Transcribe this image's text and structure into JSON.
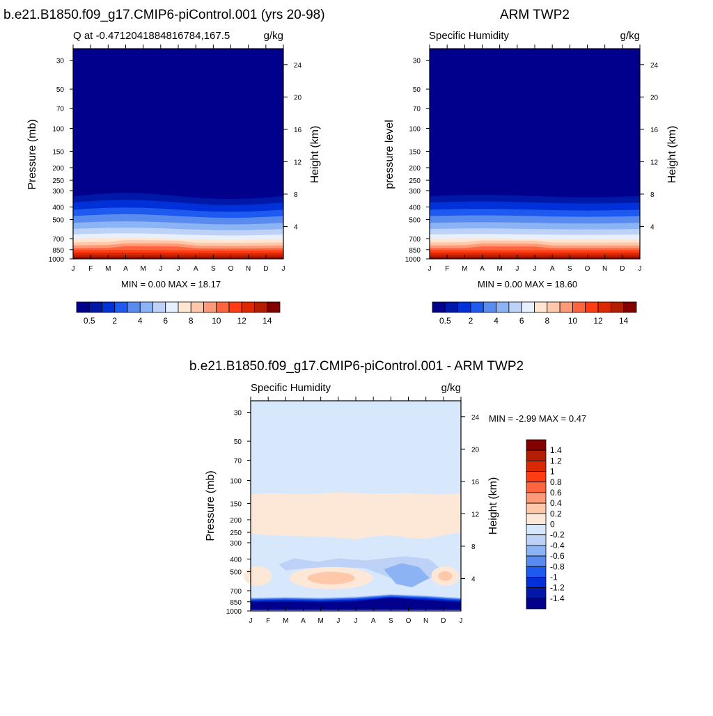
{
  "colors": {
    "ramp": [
      "#00008c",
      "#0018a8",
      "#0030d8",
      "#1e5af0",
      "#5a8cf0",
      "#8cb4f5",
      "#bed2f8",
      "#e6f0ff",
      "#ffe6d2",
      "#ffc8aa",
      "#ff9a78",
      "#ff6440",
      "#ff3c14",
      "#dc2800",
      "#b41e00",
      "#820000"
    ],
    "diff_ramp": [
      "#00008c",
      "#0018a8",
      "#0030d8",
      "#1e5af0",
      "#5a8cf0",
      "#8cb4f5",
      "#bed2f8",
      "#d8e8fc",
      "#fde8d8",
      "#ffc8aa",
      "#ff9a78",
      "#ff6440",
      "#ff3c14",
      "#dc2800",
      "#b41e00",
      "#820000"
    ]
  },
  "panels": {
    "model": {
      "title": "b.e21.B1850.f09_g17.CMIP6-piControl.001 (yrs 20-98)",
      "left_label": "Q at -0.4712041884816784,167.5",
      "right_label": "g/kg",
      "y_left_label": "Pressure (mb)",
      "y_right_label": "Height (km)",
      "minmax": "MIN =   0.00 MAX =  18.17"
    },
    "obs": {
      "title": "ARM TWP2",
      "left_label": "Specific Humidity",
      "right_label": "g/kg",
      "y_left_label": "pressure level",
      "y_right_label": "Height (km)",
      "minmax": "MIN =   0.00 MAX =  18.60"
    },
    "diff": {
      "title": "b.e21.B1850.f09_g17.CMIP6-piControl.001 - ARM TWP2",
      "left_label": "Specific Humidity",
      "right_label": "g/kg",
      "y_left_label": "Pressure (mb)",
      "y_right_label": "Height (km)",
      "minmax": "MIN =  -2.99 MAX =   0.47"
    }
  },
  "chart_data": [
    {
      "type": "heatmap",
      "title": "b.e21.B1850.f09_g17.CMIP6-piControl.001 (yrs 20-98)",
      "variable": "Q at -0.4712041884816784,167.5",
      "units": "g/kg",
      "x": [
        "J",
        "F",
        "M",
        "A",
        "M",
        "J",
        "J",
        "A",
        "S",
        "O",
        "N",
        "D",
        "J"
      ],
      "y_pressure_ticks": [
        30,
        50,
        70,
        100,
        150,
        200,
        250,
        300,
        400,
        500,
        700,
        850,
        1000
      ],
      "y_height_ticks": [
        24,
        20,
        16,
        12,
        8,
        4
      ],
      "xlabel": "",
      "ylabel": "Pressure (mb)",
      "ylabel_right": "Height (km)",
      "ylim": [
        1000,
        25
      ],
      "colorbar_ticks": [
        "0.5",
        "2",
        "4",
        "6",
        "8",
        "10",
        "12",
        "14"
      ],
      "min": 0.0,
      "max": 18.17
    },
    {
      "type": "heatmap",
      "title": "ARM TWP2",
      "variable": "Specific Humidity",
      "units": "g/kg",
      "x": [
        "J",
        "F",
        "M",
        "A",
        "M",
        "J",
        "J",
        "A",
        "S",
        "O",
        "N",
        "D",
        "J"
      ],
      "y_pressure_ticks": [
        30,
        50,
        70,
        100,
        150,
        200,
        250,
        300,
        400,
        500,
        700,
        850,
        1000
      ],
      "y_height_ticks": [
        24,
        20,
        16,
        12,
        8,
        4
      ],
      "xlabel": "",
      "ylabel": "pressure level",
      "ylabel_right": "Height (km)",
      "ylim": [
        1000,
        25
      ],
      "colorbar_ticks": [
        "0.5",
        "2",
        "4",
        "6",
        "8",
        "10",
        "12",
        "14"
      ],
      "min": 0.0,
      "max": 18.6
    },
    {
      "type": "heatmap",
      "title": "b.e21.B1850.f09_g17.CMIP6-piControl.001 - ARM TWP2",
      "variable": "Specific Humidity",
      "units": "g/kg",
      "x": [
        "J",
        "F",
        "M",
        "A",
        "M",
        "J",
        "J",
        "A",
        "S",
        "O",
        "N",
        "D",
        "J"
      ],
      "y_pressure_ticks": [
        30,
        50,
        70,
        100,
        150,
        200,
        250,
        300,
        400,
        500,
        700,
        850,
        1000
      ],
      "y_height_ticks": [
        24,
        20,
        16,
        12,
        8,
        4
      ],
      "xlabel": "",
      "ylabel": "Pressure (mb)",
      "ylabel_right": "Height (km)",
      "ylim": [
        1000,
        25
      ],
      "colorbar_ticks": [
        "1.4",
        "1.2",
        "1",
        "0.8",
        "0.6",
        "0.4",
        "0.2",
        "0",
        "-0.2",
        "-0.4",
        "-0.6",
        "-0.8",
        "-1",
        "-1.2",
        "-1.4"
      ],
      "min": -2.99,
      "max": 0.47
    }
  ]
}
